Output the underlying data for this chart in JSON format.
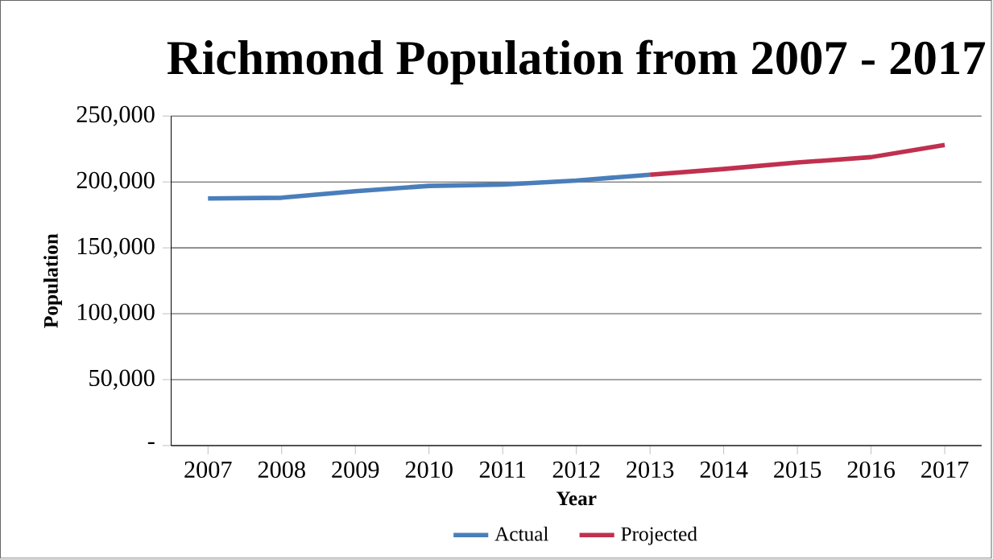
{
  "chart_data": {
    "type": "line",
    "title": "Richmond Population from 2007 - 2017",
    "xlabel": "Year",
    "ylabel": "Population",
    "categories": [
      "2007",
      "2008",
      "2009",
      "2010",
      "2011",
      "2012",
      "2013",
      "2014",
      "2015",
      "2016",
      "2017"
    ],
    "series": [
      {
        "name": "Actual",
        "color": "#4a7ebb",
        "values": [
          187500,
          188000,
          193000,
          197000,
          198000,
          201000,
          205500,
          null,
          null,
          null,
          null
        ]
      },
      {
        "name": "Projected",
        "color": "#c0304f",
        "values": [
          null,
          null,
          null,
          null,
          null,
          null,
          205500,
          209800,
          214700,
          218800,
          228000
        ]
      }
    ],
    "ylim": [
      0,
      250000
    ],
    "yticks": [
      {
        "value": 0,
        "label": "-"
      },
      {
        "value": 50000,
        "label": "50,000"
      },
      {
        "value": 100000,
        "label": "100,000"
      },
      {
        "value": 150000,
        "label": "150,000"
      },
      {
        "value": 200000,
        "label": "200,000"
      },
      {
        "value": 250000,
        "label": "250,000"
      }
    ],
    "grid": "y",
    "legend": "bottom",
    "marker": "none",
    "line_style": "solid"
  }
}
